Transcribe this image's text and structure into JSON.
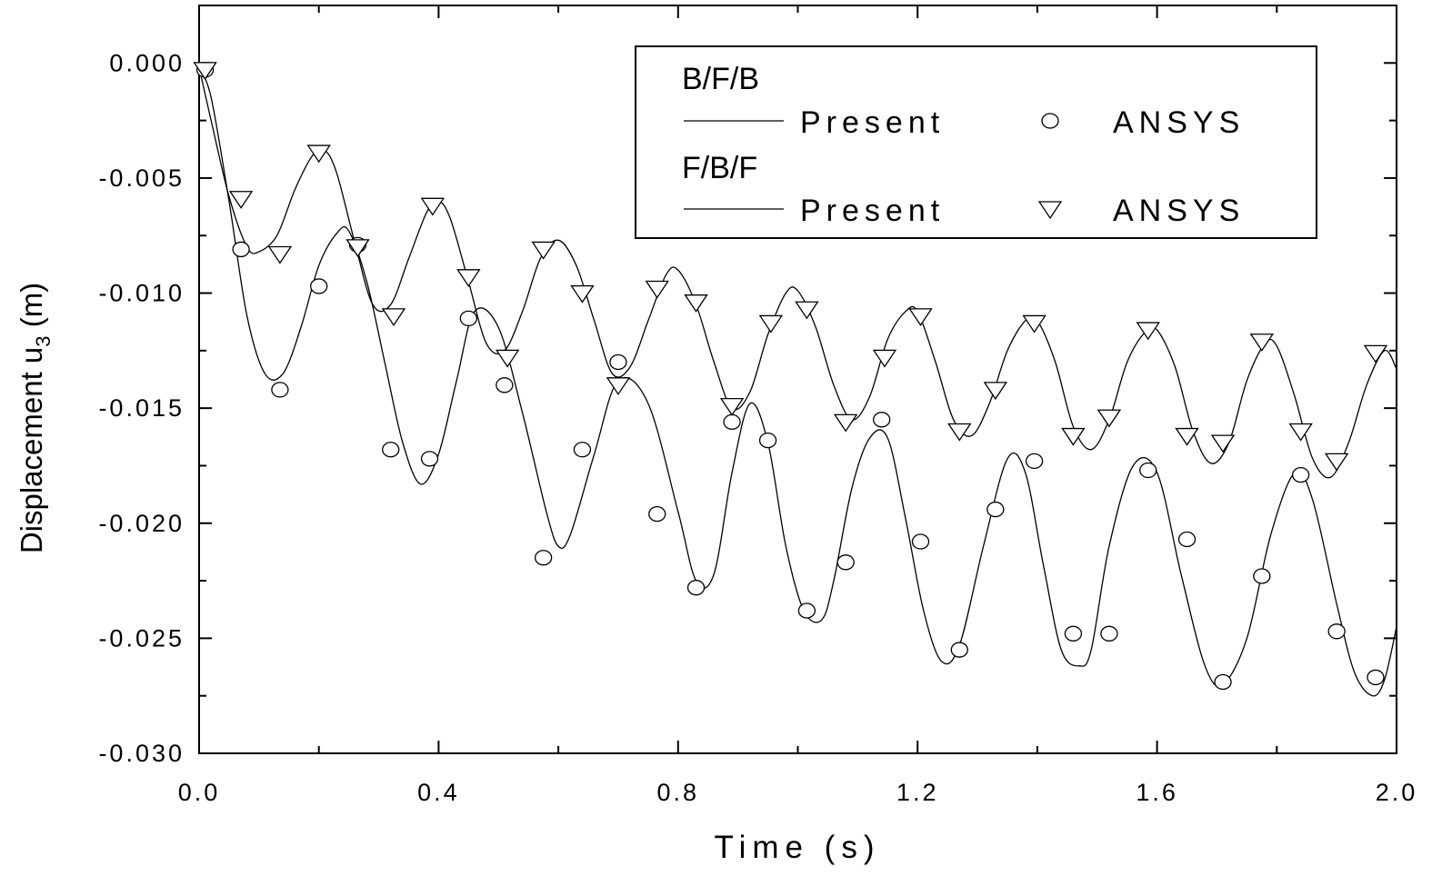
{
  "chart_data": {
    "type": "line",
    "xlabel": "Time (s)",
    "ylabel_main": "Displacement u",
    "ylabel_sub": "3",
    "ylabel_unit": " (m)",
    "xlim": [
      0.0,
      2.0
    ],
    "ylim": [
      -0.03,
      0.0025
    ],
    "x_ticks": [
      "0.0",
      "0.4",
      "0.8",
      "1.2",
      "1.6",
      "2.0"
    ],
    "y_ticks": [
      "0.000",
      "-0.005",
      "-0.010",
      "-0.015",
      "-0.020",
      "-0.025",
      "-0.030"
    ],
    "legend": {
      "position": "top-right",
      "groups": [
        {
          "label": "B/F/B",
          "line_label": "Present",
          "marker_label": "ANSYS",
          "marker": "circle"
        },
        {
          "label": "F/B/F",
          "line_label": "Present",
          "marker_label": "ANSYS",
          "marker": "triangle-down"
        }
      ]
    },
    "series": [
      {
        "group": "B/F/B",
        "kind": "line",
        "x": [
          0,
          0.02,
          0.05,
          0.08,
          0.11,
          0.14,
          0.17,
          0.2,
          0.23,
          0.25,
          0.28,
          0.31,
          0.34,
          0.37,
          0.4,
          0.43,
          0.46,
          0.5,
          0.54,
          0.58,
          0.6,
          0.62,
          0.66,
          0.7,
          0.75,
          0.8,
          0.83,
          0.86,
          0.89,
          0.92,
          0.95,
          0.98,
          1.01,
          1.04,
          1.06,
          1.09,
          1.12,
          1.15,
          1.18,
          1.21,
          1.24,
          1.27,
          1.31,
          1.35,
          1.38,
          1.41,
          1.44,
          1.47,
          1.49,
          1.52,
          1.56,
          1.6,
          1.64,
          1.68,
          1.71,
          1.75,
          1.79,
          1.83,
          1.86,
          1.9,
          1.93,
          1.96,
          1.98,
          2.0
        ],
        "y": [
          -0.0002,
          -0.0015,
          -0.006,
          -0.011,
          -0.0135,
          -0.0135,
          -0.0115,
          -0.0088,
          -0.0074,
          -0.0073,
          -0.0095,
          -0.013,
          -0.0165,
          -0.0183,
          -0.017,
          -0.0138,
          -0.0108,
          -0.0115,
          -0.0152,
          -0.0195,
          -0.021,
          -0.0205,
          -0.017,
          -0.0138,
          -0.0148,
          -0.0195,
          -0.0225,
          -0.0222,
          -0.0178,
          -0.0148,
          -0.0165,
          -0.021,
          -0.0238,
          -0.0242,
          -0.0225,
          -0.0185,
          -0.0163,
          -0.0163,
          -0.0198,
          -0.0238,
          -0.026,
          -0.0253,
          -0.021,
          -0.0172,
          -0.0178,
          -0.0218,
          -0.0255,
          -0.0262,
          -0.0255,
          -0.021,
          -0.0175,
          -0.0178,
          -0.0222,
          -0.0262,
          -0.027,
          -0.025,
          -0.0205,
          -0.0178,
          -0.019,
          -0.0235,
          -0.0265,
          -0.0275,
          -0.0268,
          -0.0245
        ]
      },
      {
        "group": "B/F/B",
        "kind": "markers",
        "x": [
          0.01,
          0.07,
          0.135,
          0.2,
          0.265,
          0.32,
          0.385,
          0.45,
          0.51,
          0.575,
          0.64,
          0.7,
          0.765,
          0.83,
          0.89,
          0.95,
          1.015,
          1.08,
          1.14,
          1.205,
          1.27,
          1.33,
          1.395,
          1.46,
          1.52,
          1.585,
          1.65,
          1.71,
          1.775,
          1.84,
          1.9,
          1.965
        ],
        "y": [
          -0.0003,
          -0.0081,
          -0.0142,
          -0.0097,
          -0.0079,
          -0.0168,
          -0.0172,
          -0.0111,
          -0.014,
          -0.0215,
          -0.0168,
          -0.013,
          -0.0196,
          -0.0228,
          -0.0156,
          -0.0164,
          -0.0238,
          -0.0217,
          -0.0155,
          -0.0208,
          -0.0255,
          -0.0194,
          -0.0173,
          -0.0248,
          -0.0248,
          -0.0177,
          -0.0207,
          -0.0269,
          -0.0223,
          -0.0179,
          -0.0247,
          -0.0267
        ]
      },
      {
        "group": "F/B/F",
        "kind": "line",
        "x": [
          0,
          0.02,
          0.05,
          0.08,
          0.1,
          0.13,
          0.16,
          0.19,
          0.21,
          0.23,
          0.26,
          0.29,
          0.32,
          0.35,
          0.38,
          0.4,
          0.42,
          0.45,
          0.48,
          0.51,
          0.54,
          0.57,
          0.6,
          0.63,
          0.66,
          0.69,
          0.72,
          0.75,
          0.78,
          0.8,
          0.83,
          0.86,
          0.89,
          0.92,
          0.95,
          0.98,
          1.0,
          1.03,
          1.06,
          1.09,
          1.12,
          1.15,
          1.18,
          1.2,
          1.23,
          1.26,
          1.29,
          1.32,
          1.35,
          1.38,
          1.4,
          1.43,
          1.46,
          1.49,
          1.52,
          1.55,
          1.58,
          1.6,
          1.63,
          1.66,
          1.69,
          1.72,
          1.75,
          1.78,
          1.8,
          1.83,
          1.86,
          1.89,
          1.92,
          1.95,
          1.98,
          2.0
        ],
        "y": [
          -0.0002,
          -0.0025,
          -0.0058,
          -0.008,
          -0.0082,
          -0.0075,
          -0.0055,
          -0.004,
          -0.0038,
          -0.0048,
          -0.0078,
          -0.0105,
          -0.0105,
          -0.0085,
          -0.0065,
          -0.006,
          -0.0068,
          -0.0095,
          -0.0122,
          -0.0125,
          -0.0108,
          -0.0085,
          -0.0077,
          -0.0088,
          -0.0112,
          -0.0135,
          -0.0132,
          -0.0112,
          -0.0092,
          -0.009,
          -0.0105,
          -0.013,
          -0.015,
          -0.0143,
          -0.0118,
          -0.01,
          -0.0099,
          -0.0115,
          -0.014,
          -0.0155,
          -0.0145,
          -0.012,
          -0.0108,
          -0.0108,
          -0.013,
          -0.0155,
          -0.0162,
          -0.0148,
          -0.0125,
          -0.0112,
          -0.0112,
          -0.013,
          -0.0158,
          -0.0168,
          -0.0155,
          -0.013,
          -0.0117,
          -0.0116,
          -0.0132,
          -0.016,
          -0.0174,
          -0.0165,
          -0.0138,
          -0.0122,
          -0.0123,
          -0.0145,
          -0.0172,
          -0.018,
          -0.0165,
          -0.014,
          -0.0125,
          -0.0133
        ]
      },
      {
        "group": "F/B/F",
        "kind": "markers",
        "x": [
          0.01,
          0.07,
          0.135,
          0.2,
          0.265,
          0.325,
          0.39,
          0.45,
          0.515,
          0.575,
          0.64,
          0.7,
          0.765,
          0.83,
          0.89,
          0.955,
          1.015,
          1.08,
          1.145,
          1.205,
          1.27,
          1.33,
          1.395,
          1.46,
          1.52,
          1.585,
          1.65,
          1.71,
          1.775,
          1.84,
          1.9,
          1.965
        ],
        "y": [
          -0.0003,
          -0.0059,
          -0.0083,
          -0.0039,
          -0.008,
          -0.011,
          -0.0062,
          -0.0093,
          -0.0128,
          -0.0081,
          -0.01,
          -0.014,
          -0.0098,
          -0.0104,
          -0.0149,
          -0.0113,
          -0.0107,
          -0.0156,
          -0.0128,
          -0.011,
          -0.016,
          -0.0142,
          -0.0113,
          -0.0162,
          -0.0154,
          -0.0116,
          -0.0162,
          -0.0165,
          -0.0121,
          -0.016,
          -0.0173,
          -0.0126
        ]
      }
    ]
  }
}
